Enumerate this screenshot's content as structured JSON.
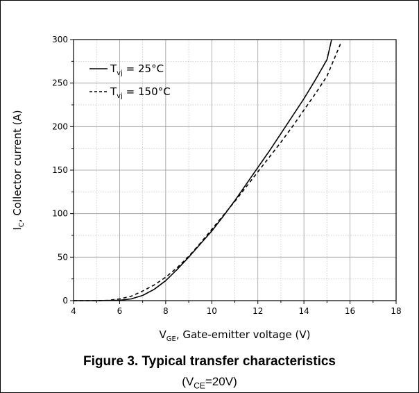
{
  "figure": {
    "caption_title": "Figure 3. Typical transfer characteristics",
    "caption_sub_prefix": "(V",
    "caption_sub_subscript": "CE",
    "caption_sub_suffix": "=20V)"
  },
  "chart_data": {
    "type": "line",
    "xlabel": {
      "main": "V",
      "sub": "GE",
      "rest": ", Gate-emitter voltage (V)"
    },
    "ylabel": {
      "main": "I",
      "sub": "C",
      "rest": ", Collector current (A)"
    },
    "xlim": [
      4,
      18
    ],
    "ylim": [
      0,
      300
    ],
    "x_ticks": [
      "4",
      "6",
      "8",
      "10",
      "12",
      "14",
      "16",
      "18"
    ],
    "y_ticks": [
      "0",
      "50",
      "100",
      "150",
      "200",
      "250",
      "300"
    ],
    "grid": true,
    "legend_position": "top-left",
    "series": [
      {
        "name": {
          "main": "T",
          "sub": "vj",
          "rest": " = 25°C"
        },
        "style": "solid",
        "color": "#000000",
        "x": [
          4,
          5,
          6,
          6.5,
          7,
          7.5,
          8,
          8.5,
          9,
          9.5,
          10,
          10.5,
          11,
          11.5,
          12,
          12.5,
          13,
          13.5,
          14,
          14.5,
          15,
          15.2
        ],
        "y": [
          0,
          0,
          0.5,
          2,
          6,
          13,
          23,
          36,
          50,
          65,
          80,
          97,
          115,
          134,
          153,
          172,
          192,
          212,
          232,
          254,
          277,
          300
        ]
      },
      {
        "name": {
          "main": "T",
          "sub": "vj",
          "rest": " = 150°C"
        },
        "style": "dashed",
        "color": "#000000",
        "x": [
          4,
          5,
          5.5,
          6,
          6.5,
          7,
          7.5,
          8,
          8.5,
          9,
          9.5,
          10,
          10.5,
          11,
          11.5,
          12,
          12.5,
          13,
          13.5,
          14,
          14.5,
          15,
          15.6
        ],
        "y": [
          0,
          0,
          0.3,
          2,
          5,
          11,
          18,
          27,
          38,
          51,
          66,
          82,
          98,
          114,
          131,
          148,
          165,
          182,
          200,
          219,
          238,
          258,
          296
        ]
      }
    ]
  }
}
